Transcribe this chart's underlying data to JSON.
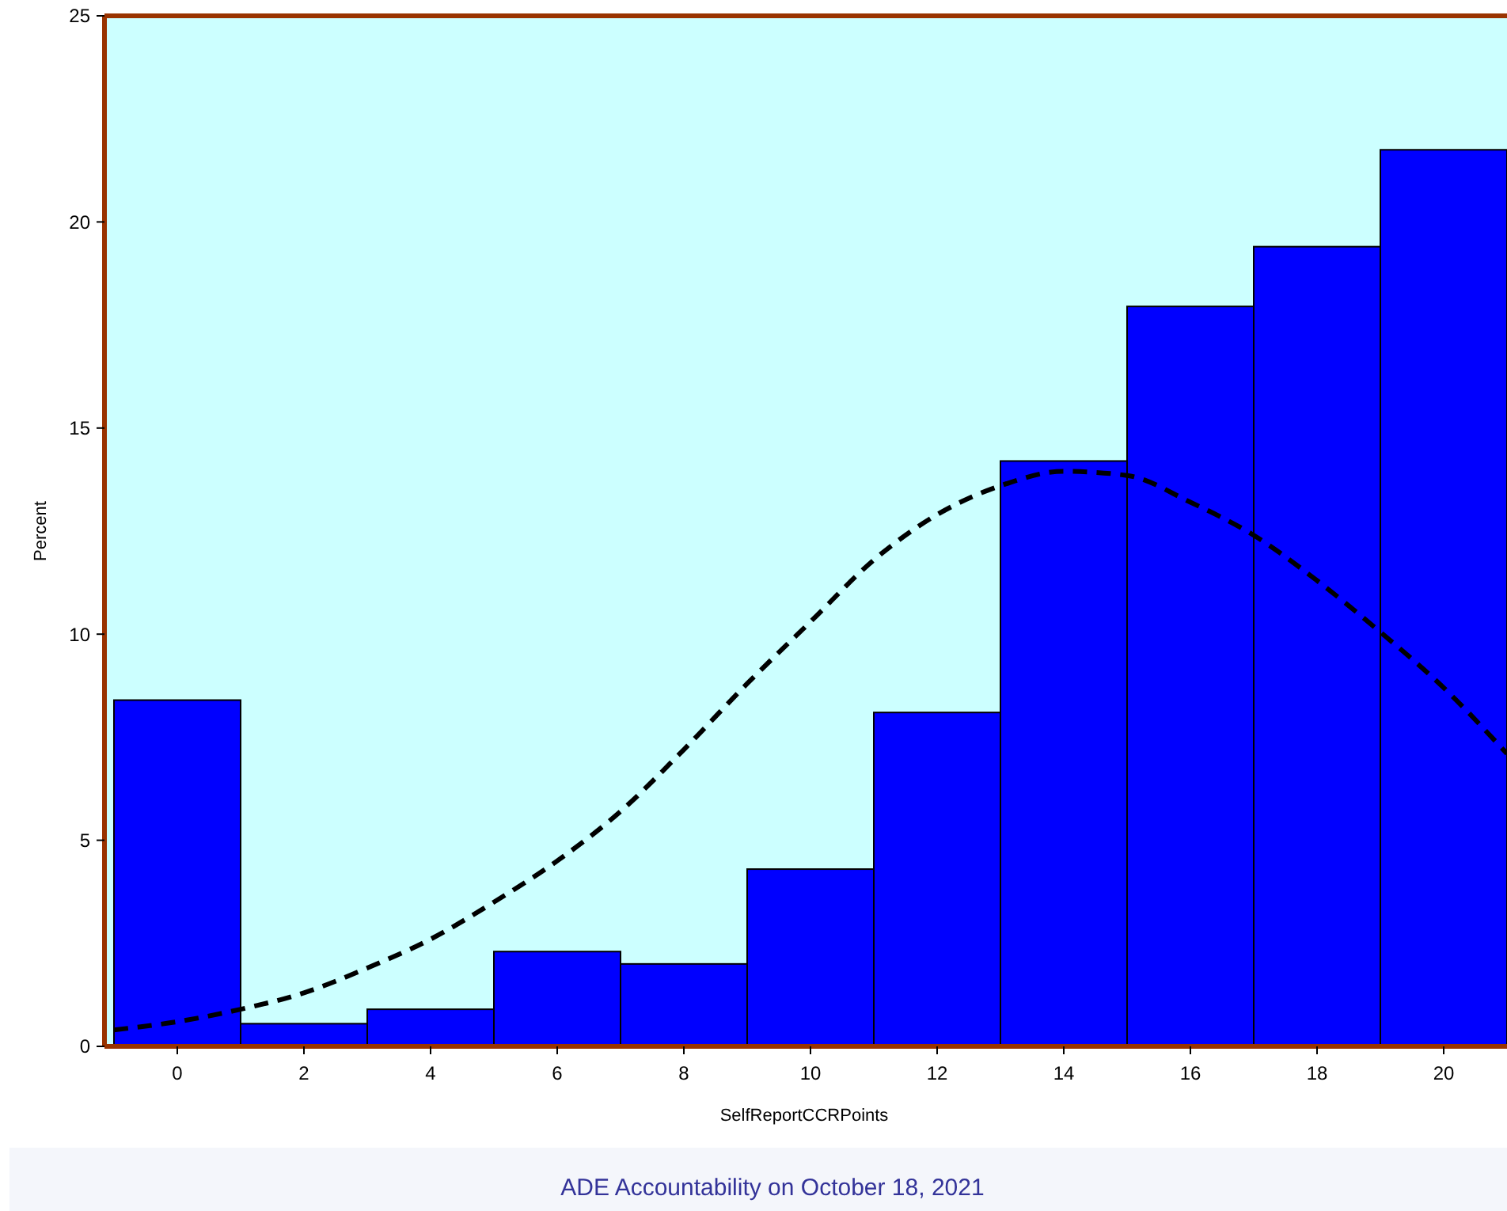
{
  "chart_data": {
    "type": "histogram",
    "xlabel": "SelfReportCCRPoints",
    "ylabel": "Percent",
    "bins": [
      -1,
      1,
      3,
      5,
      7,
      9,
      11,
      13,
      15,
      17,
      19,
      21
    ],
    "values": [
      8.4,
      0.55,
      0.9,
      2.3,
      2.0,
      4.3,
      8.1,
      14.2,
      17.95,
      19.4,
      21.75
    ],
    "color": "#0000ff",
    "series": [
      {
        "type": "line",
        "color": "#000000",
        "line_style": "dashed",
        "x": [
          -1,
          0,
          1,
          2,
          3,
          4,
          5,
          6,
          7,
          8,
          9,
          10,
          11,
          12,
          13,
          14,
          15,
          16,
          17,
          18,
          19,
          20,
          21
        ],
        "values": [
          0.4,
          0.6,
          0.9,
          1.3,
          1.9,
          2.6,
          3.5,
          4.5,
          5.7,
          7.2,
          8.8,
          10.3,
          11.8,
          12.9,
          13.6,
          13.95,
          13.85,
          13.2,
          12.4,
          11.3,
          10.05,
          8.7,
          7.1
        ]
      }
    ],
    "xlim": [
      -1.15,
      21
    ],
    "xticks": [
      0,
      2,
      4,
      6,
      8,
      10,
      12,
      14,
      16,
      18,
      20
    ],
    "ylim": [
      0,
      25
    ],
    "yticks": [
      0,
      5,
      10,
      15,
      20,
      25
    ],
    "grid": false,
    "annotations": [
      "ADE Accountability on October 18, 2021"
    ]
  }
}
